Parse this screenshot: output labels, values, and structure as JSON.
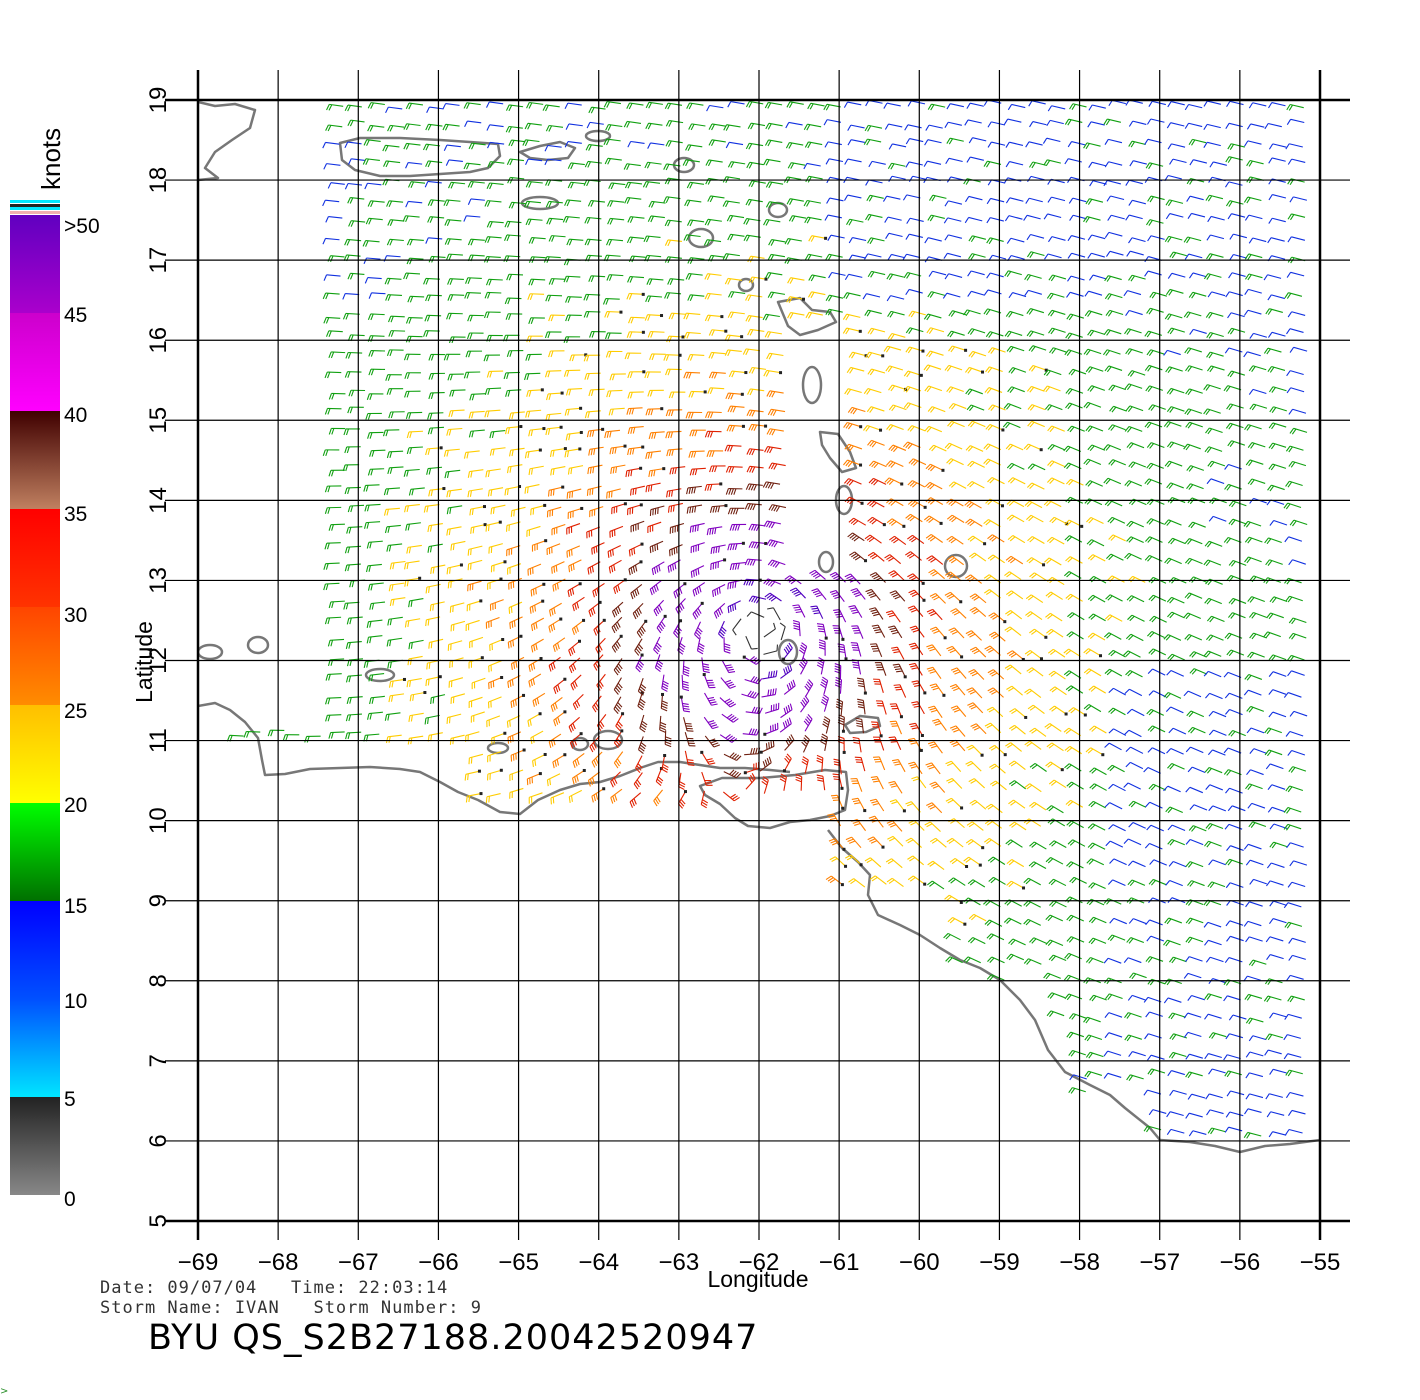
{
  "map": {
    "x_axis_title": "Longitude",
    "y_axis_title": "Latitude",
    "lon_ticks": [
      "-69",
      "-68",
      "-67",
      "-66",
      "-65",
      "-64",
      "-63",
      "-62",
      "-61",
      "-60",
      "-59",
      "-58",
      "-57",
      "-56",
      "-55"
    ],
    "lat_ticks": [
      "5",
      "6",
      "7",
      "8",
      "9",
      "10",
      "11",
      "12",
      "13",
      "14",
      "15",
      "16",
      "17",
      "18",
      "19"
    ],
    "lon_range": [
      -69,
      -55
    ],
    "lat_range": [
      5,
      19
    ],
    "grid": true,
    "coastline_color": "#777777",
    "wind_unit": "knots",
    "storm_center": {
      "lon": -62.0,
      "lat": 12.4
    }
  },
  "legend": {
    "unit_label": "knots",
    "labels": [
      ">50",
      "45",
      "40",
      "35",
      "30",
      "25",
      "20",
      "15",
      "10",
      "5",
      "0"
    ],
    "bands": [
      {
        "from": 0,
        "to": 5,
        "colors": [
          "#888888",
          "#222222"
        ]
      },
      {
        "from": 5,
        "to": 10,
        "colors": [
          "#00e5ff",
          "#0050ff"
        ]
      },
      {
        "from": 10,
        "to": 15,
        "colors": [
          "#0050ff",
          "#0000ff"
        ]
      },
      {
        "from": 15,
        "to": 20,
        "colors": [
          "#007000",
          "#00ff00"
        ]
      },
      {
        "from": 20,
        "to": 25,
        "colors": [
          "#ffff00",
          "#ffbf00"
        ]
      },
      {
        "from": 25,
        "to": 30,
        "colors": [
          "#ff8c00",
          "#ff4500"
        ]
      },
      {
        "from": 30,
        "to": 35,
        "colors": [
          "#ff3300",
          "#ff0000"
        ]
      },
      {
        "from": 35,
        "to": 40,
        "colors": [
          "#c08060",
          "#400000"
        ]
      },
      {
        "from": 40,
        "to": 45,
        "colors": [
          "#ff00ff",
          "#cc00cc"
        ]
      },
      {
        "from": 45,
        "to": 50,
        "colors": [
          "#aa00cc",
          "#6000c0"
        ]
      }
    ]
  },
  "info": {
    "date_line": "Date: 09/07/04   Time: 22:03:14",
    "storm_line": "Storm Name: IVAN   Storm Number: 9",
    "product_id": "BYU QS_S2B27188.20042520947"
  },
  "wind_colors": {
    "calm": "#333333",
    "blue": "#1030e0",
    "green": "#10a010",
    "yellow": "#ffcc00",
    "orange": "#ff8000",
    "red": "#e02000",
    "brown": "#702010",
    "purple": "#8000c0",
    "violet": "#5000c0"
  }
}
